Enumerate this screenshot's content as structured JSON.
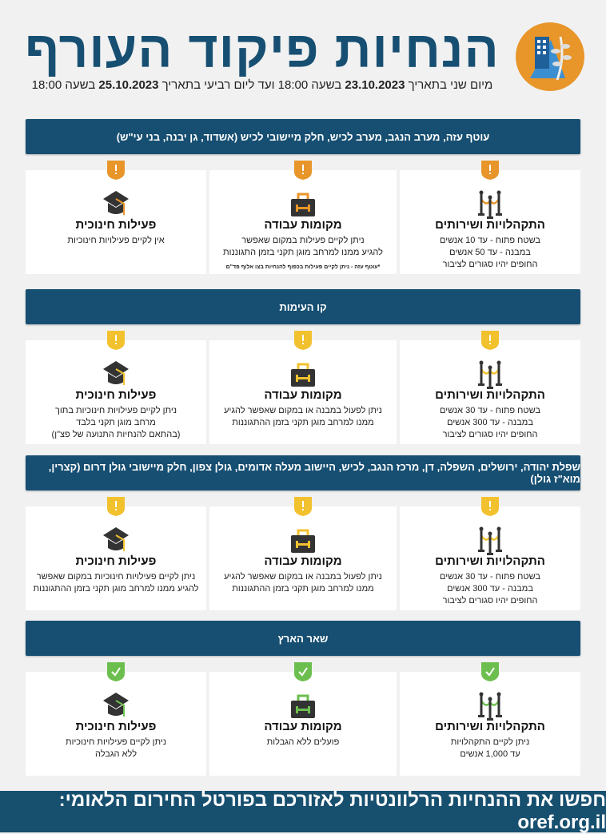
{
  "header": {
    "title": "הנחיות פיקוד העורף",
    "subtitle_parts": [
      "מיום שני בתאריך ",
      "23.10.2023",
      " בשעה 18:00 ועד ליום רביעי בתאריך ",
      "25.10.2023",
      " בשעה 18:00"
    ],
    "logo_icon": "home-front-command-logo"
  },
  "colors": {
    "bar": "#174f72",
    "orange": "#e8952a",
    "yellow": "#f2c12e",
    "green": "#6cbf4f"
  },
  "sections": [
    {
      "region": "עוטף עזה, מערב הנגב, מערב לכיש, חלק מיישובי לכיש (אשדוד, גן יבנה, בני עי\"ש)",
      "status": "warning",
      "color": "#e8952a",
      "cards": [
        {
          "icon": "stanchions-icon",
          "title": "התקהלויות ושירותים",
          "lines": [
            "בשטח פתוח - עד 10 אנשים",
            "במבנה - עד 50 אנשים",
            "החופים יהיו סגורים לציבור"
          ]
        },
        {
          "icon": "briefcase-icon",
          "title": "מקומות עבודה",
          "lines": [
            "ניתן לקיים פעילות במקום שאפשר",
            "להגיע ממנו למרחב מוגן תקני בזמן התגוננות"
          ],
          "note": "*עוטף עזה - ניתן לקיים פעילות בכפוף להנחיות בצו אלוף פד\"ם"
        },
        {
          "icon": "graduation-cap-icon",
          "title": "פעילות חינוכית",
          "lines": [
            "אין לקיים פעילויות חינוכיות"
          ]
        }
      ]
    },
    {
      "region": "קו העימות",
      "status": "warning",
      "color": "#f2c12e",
      "cards": [
        {
          "icon": "stanchions-icon",
          "title": "התקהלויות ושירותים",
          "lines": [
            "בשטח פתוח - עד 30 אנשים",
            "במבנה - עד 300 אנשים",
            "החופים יהיו סגורים לציבור"
          ]
        },
        {
          "icon": "briefcase-icon",
          "title": "מקומות עבודה",
          "lines": [
            "ניתן לפעול במבנה או במקום שאפשר להגיע",
            "ממנו למרחב מוגן תקני בזמן ההתגוננות"
          ]
        },
        {
          "icon": "graduation-cap-icon",
          "title": "פעילות חינוכית",
          "lines": [
            "ניתן לקיים פעילויות חינוכיות בתוך",
            "מרחב מוגן תקני בלבד",
            "(בהתאם להנחיות התנועה של פצ\"ן)"
          ]
        }
      ]
    },
    {
      "region": "שפלת יהודה, ירושלים, השפלה, דן, מרכז הנגב, לכיש, היישוב מעלה אדומים, גולן צפון, חלק מיישובי גולן דרום (קצרין, מוא\"ז גולן)",
      "status": "warning",
      "color": "#f2c12e",
      "cards": [
        {
          "icon": "stanchions-icon",
          "title": "התקהלויות ושירותים",
          "lines": [
            "בשטח פתוח - עד 30 אנשים",
            "במבנה - עד 300 אנשים",
            "החופים יהיו סגורים לציבור"
          ]
        },
        {
          "icon": "briefcase-icon",
          "title": "מקומות עבודה",
          "lines": [
            "ניתן לפעול במבנה או במקום שאפשר להגיע",
            "ממנו למרחב מוגן תקני בזמן ההתגוננות"
          ]
        },
        {
          "icon": "graduation-cap-icon",
          "title": "פעילות חינוכית",
          "lines": [
            "ניתן לקיים פעילויות חינוכיות במקום שאפשר",
            "להגיע ממנו למרחב מוגן תקני בזמן ההתגוננות"
          ]
        }
      ]
    },
    {
      "region": "שאר הארץ",
      "status": "ok",
      "color": "#6cbf4f",
      "cards": [
        {
          "icon": "stanchions-icon",
          "title": "התקהלויות ושירותים",
          "lines": [
            "ניתן לקיים התקהלויות",
            "עד 1,000 אנשים"
          ]
        },
        {
          "icon": "briefcase-icon",
          "title": "מקומות עבודה",
          "lines": [
            "פועלים ללא הגבלות"
          ]
        },
        {
          "icon": "graduation-cap-icon",
          "title": "פעילות חינוכית",
          "lines": [
            "ניתן לקיים פעילויות חינוכיות",
            "ללא הגבלה"
          ]
        }
      ]
    }
  ],
  "footer": {
    "text": "חפשו את ההנחיות הרלוונטיות לאזורכם בפורטל החירום הלאומי: oref.org.il"
  }
}
